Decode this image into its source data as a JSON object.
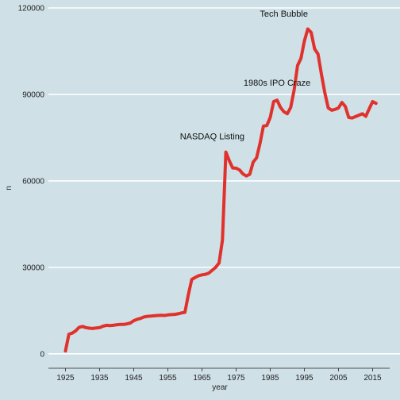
{
  "chart_data": {
    "type": "line",
    "title": "",
    "xlabel": "year",
    "ylabel": "n",
    "xlim": [
      1920,
      2020
    ],
    "ylim": [
      -5000,
      120000
    ],
    "x_ticks": [
      1925,
      1935,
      1945,
      1955,
      1965,
      1975,
      1985,
      1995,
      2005,
      2015
    ],
    "y_ticks": [
      0,
      30000,
      60000,
      90000,
      120000
    ],
    "y_tick_labels": [
      "0",
      "30000",
      "60000",
      "90000",
      "120000"
    ],
    "grid": "horizontal",
    "legend": "none",
    "colors": {
      "background": "#cfe0e7",
      "grid": "#ffffff",
      "line": "#e0322c",
      "text": "#222222"
    },
    "series": [
      {
        "x": [
          1925,
          1926,
          1927,
          1928,
          1929,
          1930,
          1931,
          1932,
          1933,
          1934,
          1935,
          1936,
          1937,
          1938,
          1939,
          1940,
          1941,
          1942,
          1943,
          1944,
          1945,
          1946,
          1947,
          1948,
          1949,
          1950,
          1951,
          1952,
          1953,
          1954,
          1955,
          1956,
          1957,
          1958,
          1959,
          1960,
          1961,
          1962,
          1963,
          1964,
          1965,
          1966,
          1967,
          1968,
          1969,
          1970,
          1971,
          1972,
          1973,
          1974,
          1975,
          1976,
          1977,
          1978,
          1979,
          1980,
          1981,
          1982,
          1983,
          1984,
          1985,
          1986,
          1987,
          1988,
          1989,
          1990,
          1991,
          1992,
          1993,
          1994,
          1995,
          1996,
          1997,
          1998,
          1999,
          2000,
          2001,
          2002,
          2003,
          2004,
          2005,
          2006,
          2007,
          2008,
          2009,
          2010,
          2011,
          2012,
          2013,
          2014,
          2015,
          2016
        ],
        "y": [
          1000,
          6800,
          7200,
          8000,
          9200,
          9500,
          9100,
          8900,
          8800,
          9000,
          9100,
          9600,
          9900,
          9800,
          9900,
          10100,
          10200,
          10200,
          10400,
          10700,
          11500,
          12000,
          12300,
          12800,
          13000,
          13100,
          13200,
          13300,
          13400,
          13300,
          13500,
          13600,
          13700,
          13900,
          14200,
          14400,
          20500,
          25800,
          26500,
          27100,
          27400,
          27600,
          28000,
          29000,
          30000,
          31500,
          39500,
          70000,
          67000,
          64500,
          64400,
          63800,
          62400,
          61700,
          62300,
          66500,
          68000,
          73000,
          79000,
          79200,
          82000,
          87500,
          88000,
          85500,
          84000,
          83300,
          85500,
          91500,
          100000,
          102500,
          108500,
          112700,
          111500,
          105800,
          104000,
          97000,
          90500,
          85300,
          84500,
          84800,
          85300,
          87200,
          85800,
          82000,
          81800,
          82300,
          82800,
          83300,
          82400,
          85000,
          87500,
          86900
        ]
      }
    ],
    "annotations": [
      {
        "text": "NASDAQ Listing",
        "x": 1968,
        "y": 74500
      },
      {
        "text": "1980s IPO Craze",
        "x": 1987,
        "y": 93000
      },
      {
        "text": "Tech Bubble",
        "x": 1989,
        "y": 117000
      }
    ]
  }
}
